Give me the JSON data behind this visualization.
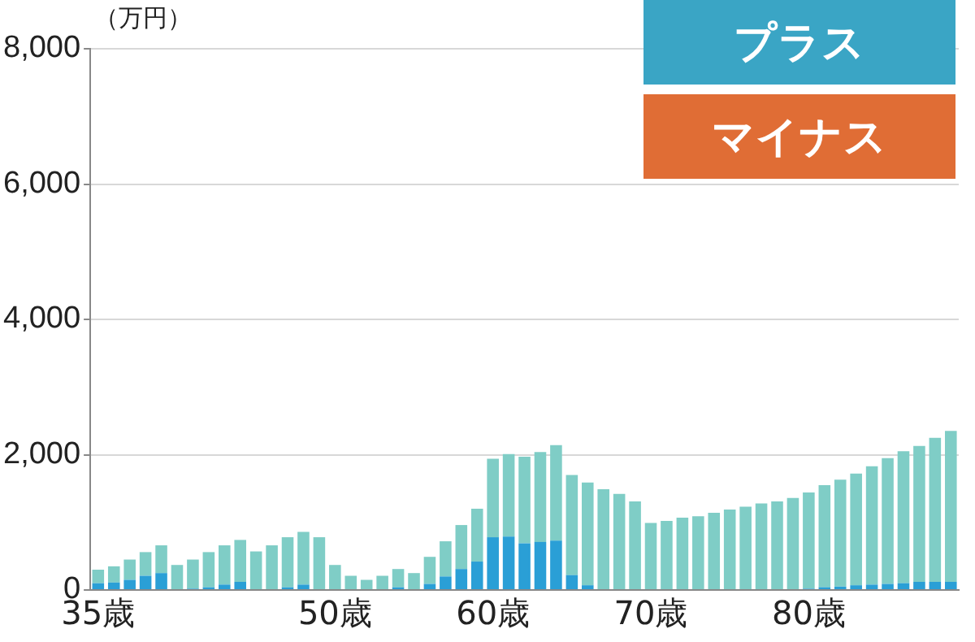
{
  "chart_data": {
    "type": "bar",
    "stacked": true,
    "ylabel": "（万円）",
    "categories": [
      "35歳",
      null,
      null,
      null,
      null,
      null,
      null,
      null,
      null,
      null,
      null,
      null,
      null,
      null,
      null,
      "50歳",
      null,
      null,
      null,
      null,
      null,
      null,
      null,
      null,
      null,
      "60歳",
      null,
      null,
      null,
      null,
      null,
      null,
      null,
      null,
      null,
      "70歳",
      null,
      null,
      null,
      null,
      null,
      null,
      null,
      null,
      null,
      "80歳",
      null,
      null,
      null,
      null,
      null,
      null,
      null,
      null,
      null
    ],
    "series": [
      {
        "color": "#2a9fd6",
        "values": [
          100,
          110,
          150,
          210,
          250,
          0,
          20,
          40,
          80,
          120,
          0,
          0,
          40,
          80,
          0,
          0,
          0,
          0,
          0,
          40,
          0,
          90,
          200,
          310,
          420,
          780,
          790,
          690,
          710,
          730,
          220,
          70,
          0,
          0,
          0,
          0,
          0,
          0,
          0,
          0,
          0,
          0,
          0,
          0,
          0,
          20,
          40,
          50,
          70,
          80,
          90,
          100,
          120,
          120,
          120
        ]
      },
      {
        "color": "#7fcdc6",
        "values": [
          200,
          240,
          300,
          350,
          410,
          370,
          430,
          520,
          580,
          620,
          570,
          660,
          740,
          780,
          780,
          370,
          210,
          150,
          210,
          270,
          250,
          400,
          520,
          650,
          780,
          1160,
          1220,
          1280,
          1330,
          1410,
          1480,
          1520,
          1490,
          1420,
          1310,
          990,
          1020,
          1070,
          1090,
          1140,
          1190,
          1230,
          1280,
          1310,
          1360,
          1420,
          1510,
          1580,
          1650,
          1750,
          1860,
          1950,
          2010,
          2130,
          2230
        ]
      }
    ],
    "ylim": [
      0,
      8000
    ],
    "yticks": [
      0,
      {
        "value": 2000,
        "label": "2,000"
      },
      {
        "value": 4000,
        "label": "4,000"
      },
      {
        "value": 6000,
        "label": "6,000"
      },
      {
        "value": 8000,
        "label": "8,000"
      }
    ],
    "grid": "y",
    "annotations": [
      "プラス",
      "マイナス"
    ]
  }
}
